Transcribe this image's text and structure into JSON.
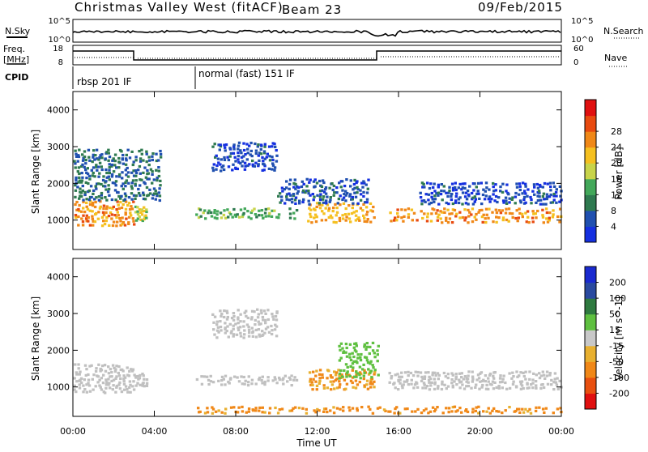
{
  "header": {
    "title": "Christmas Valley West (fitACF)",
    "beam": "Beam 23",
    "date": "09/Feb/2015"
  },
  "status_panels": {
    "nsky_label": "N.Sky",
    "nsky_ticks": [
      "10^5",
      "10^0"
    ],
    "nsearch_label": "N.Search",
    "nsearch_ticks": [
      "10^5",
      "10^0"
    ],
    "freq_label_line1": "Freq.",
    "freq_label_line2": "[MHz]",
    "freq_ticks": [
      "18",
      "8"
    ],
    "nave_label": "Nave",
    "nave_ticks": [
      "60",
      "0"
    ],
    "cpid_label": "CPID",
    "cpid_segments": [
      {
        "name": "rbsp 201 IF",
        "start_hour": 0
      },
      {
        "name": "normal (fast) 151 IF",
        "start_hour": 6
      }
    ]
  },
  "chart_data": [
    {
      "type": "heatmap",
      "title": "",
      "xlabel": "Time UT",
      "ylabel": "Slant Range [km]",
      "x_ticks": [
        "00:00",
        "04:00",
        "08:00",
        "12:00",
        "16:00",
        "20:00",
        "00:00"
      ],
      "x_range_hours": [
        0,
        24
      ],
      "y_ticks": [
        1000,
        2000,
        3000,
        4000
      ],
      "ylim": [
        200,
        4500
      ],
      "colorbar": {
        "label": "Power [dB]",
        "ticks": [
          4,
          8,
          12,
          16,
          20,
          24,
          28
        ],
        "colors": [
          "#1530e0",
          "#2050b0",
          "#2f7a50",
          "#43a85a",
          "#c8d44a",
          "#f5c020",
          "#f08818",
          "#e84a10",
          "#e01010"
        ]
      },
      "bands": [
        {
          "t_start": 0.0,
          "t_end": 3.0,
          "range_low": 800,
          "range_high": 1500,
          "power_db": 26
        },
        {
          "t_start": 3.0,
          "t_end": 3.6,
          "range_low": 950,
          "range_high": 1350,
          "power_db": 18
        },
        {
          "t_start": 6.0,
          "t_end": 11.0,
          "range_low": 1000,
          "range_high": 1300,
          "power_db": 14
        },
        {
          "t_start": 11.5,
          "t_end": 14.8,
          "range_low": 900,
          "range_high": 1450,
          "power_db": 24
        },
        {
          "t_start": 15.5,
          "t_end": 24.0,
          "range_low": 900,
          "range_high": 1300,
          "power_db": 26
        },
        {
          "t_start": 0.0,
          "t_end": 4.3,
          "range_low": 1500,
          "range_high": 2900,
          "power_db": 8
        },
        {
          "t_start": 6.8,
          "t_end": 10.0,
          "range_low": 2300,
          "range_high": 3100,
          "power_db": 5
        },
        {
          "t_start": 10.0,
          "t_end": 14.5,
          "range_low": 1400,
          "range_high": 2100,
          "power_db": 6
        },
        {
          "t_start": 17.0,
          "t_end": 24.0,
          "range_low": 1400,
          "range_high": 2000,
          "power_db": 5
        }
      ]
    },
    {
      "type": "heatmap",
      "title": "",
      "xlabel": "Time UT",
      "ylabel": "Slant Range [km]",
      "x_ticks": [
        "00:00",
        "04:00",
        "08:00",
        "12:00",
        "16:00",
        "20:00",
        "00:00"
      ],
      "x_range_hours": [
        0,
        24
      ],
      "y_ticks": [
        1000,
        2000,
        3000,
        4000
      ],
      "ylim": [
        200,
        4500
      ],
      "colorbar": {
        "label": "Velocity [m s^-1]",
        "tick_labels": [
          "200",
          "100",
          "50",
          "15",
          "-15",
          "-50",
          "-100",
          "-200"
        ],
        "colors": [
          "#1a2ad0",
          "#2a4aa0",
          "#2f7a40",
          "#5fc040",
          "#c8c8c8",
          "#e8b030",
          "#f08818",
          "#e85010",
          "#e01010"
        ]
      },
      "ground_scatter_color": "#c0c0c0",
      "bands": [
        {
          "t_start": 0.0,
          "t_end": 3.0,
          "range_low": 800,
          "range_high": 1600,
          "velocity": 0
        },
        {
          "t_start": 3.0,
          "t_end": 3.6,
          "range_low": 950,
          "range_high": 1350,
          "velocity": 0
        },
        {
          "t_start": 6.0,
          "t_end": 11.0,
          "range_low": 1000,
          "range_high": 1300,
          "velocity": 0
        },
        {
          "t_start": 11.5,
          "t_end": 14.8,
          "range_low": 900,
          "range_high": 1450,
          "velocity": -50
        },
        {
          "t_start": 15.5,
          "t_end": 24.0,
          "range_low": 900,
          "range_high": 1400,
          "velocity": 0
        },
        {
          "t_start": 6.8,
          "t_end": 10.0,
          "range_low": 2300,
          "range_high": 3100,
          "velocity": 0
        },
        {
          "t_start": 13.0,
          "t_end": 15.0,
          "range_low": 1200,
          "range_high": 2200,
          "velocity": 30
        },
        {
          "t_start": 6.0,
          "t_end": 24.0,
          "range_low": 250,
          "range_high": 450,
          "velocity": -60
        }
      ]
    }
  ]
}
